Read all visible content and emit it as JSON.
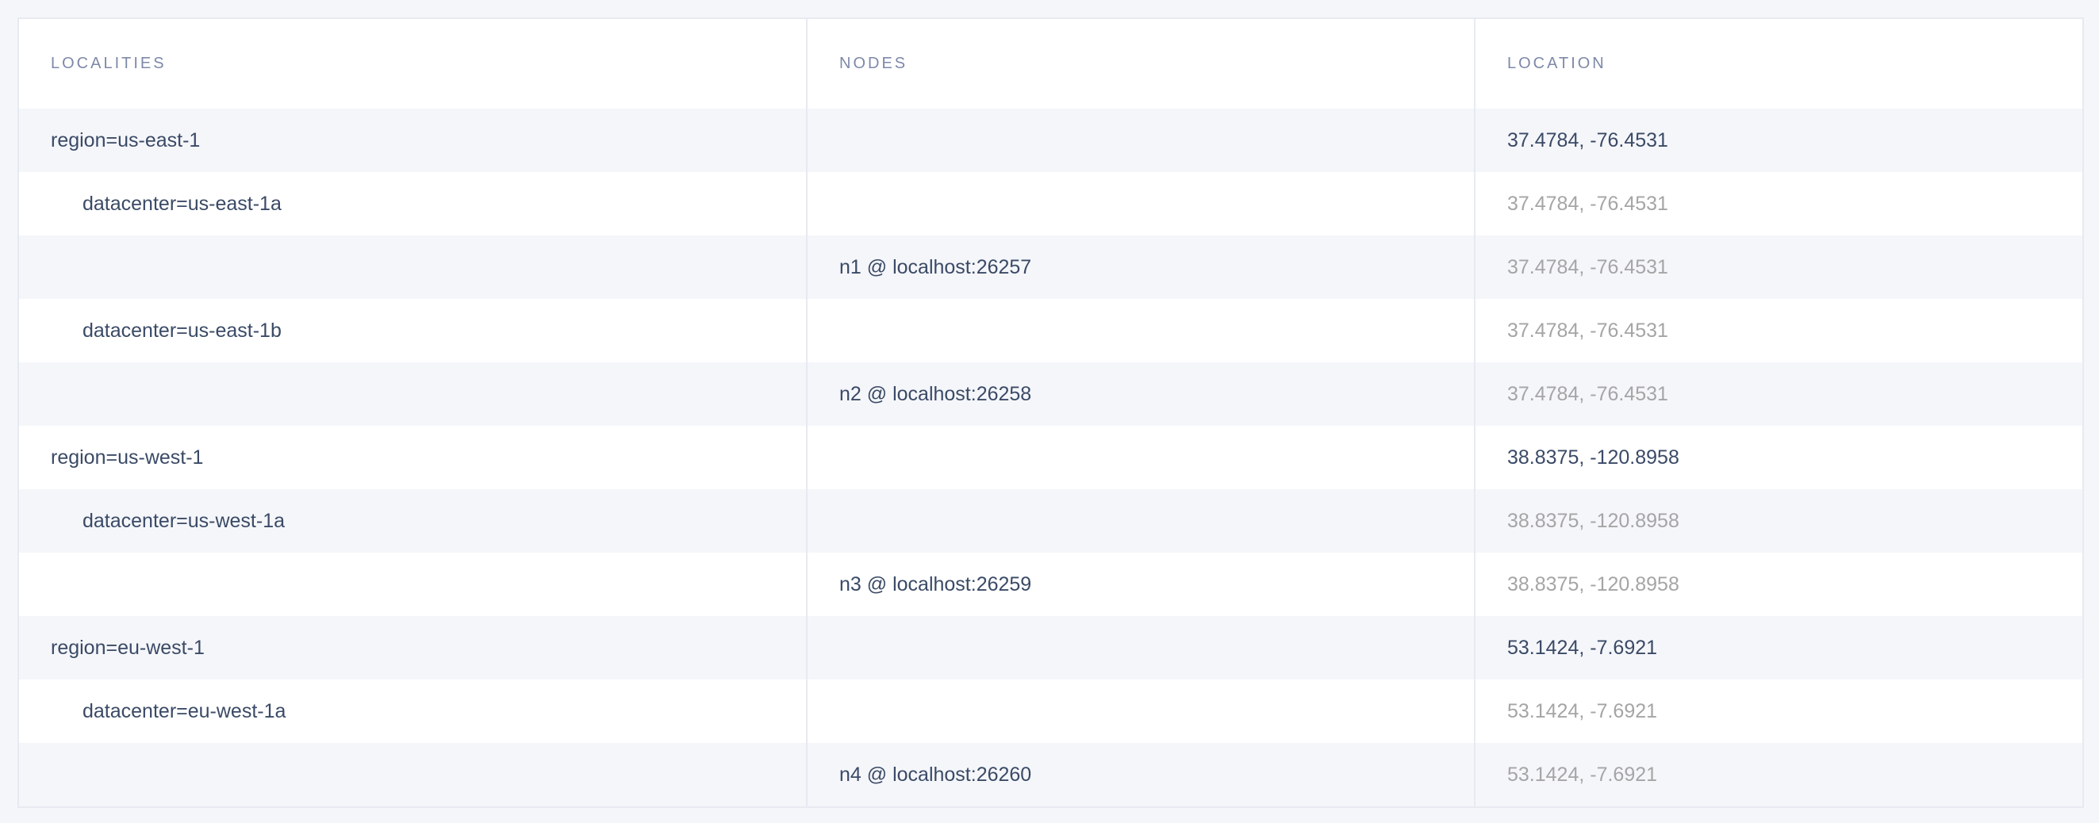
{
  "table": {
    "headers": [
      "LOCALITIES",
      "NODES",
      "LOCATION"
    ],
    "rows": [
      {
        "locality": "region=us-east-1",
        "node": "",
        "location": "37.4784, -76.4531",
        "level": 0
      },
      {
        "locality": "datacenter=us-east-1a",
        "node": "",
        "location": "37.4784, -76.4531",
        "level": 1
      },
      {
        "locality": "",
        "node": "n1 @ localhost:26257",
        "location": "37.4784, -76.4531",
        "level": 2
      },
      {
        "locality": "datacenter=us-east-1b",
        "node": "",
        "location": "37.4784, -76.4531",
        "level": 1
      },
      {
        "locality": "",
        "node": "n2 @ localhost:26258",
        "location": "37.4784, -76.4531",
        "level": 2
      },
      {
        "locality": "region=us-west-1",
        "node": "",
        "location": "38.8375, -120.8958",
        "level": 0
      },
      {
        "locality": "datacenter=us-west-1a",
        "node": "",
        "location": "38.8375, -120.8958",
        "level": 1
      },
      {
        "locality": "",
        "node": "n3 @ localhost:26259",
        "location": "38.8375, -120.8958",
        "level": 2
      },
      {
        "locality": "region=eu-west-1",
        "node": "",
        "location": "53.1424, -7.6921",
        "level": 0
      },
      {
        "locality": "datacenter=eu-west-1a",
        "node": "",
        "location": "53.1424, -7.6921",
        "level": 1
      },
      {
        "locality": "",
        "node": "n4 @ localhost:26260",
        "location": "53.1424, -7.6921",
        "level": 2
      }
    ]
  },
  "colors": {
    "text": "#3a4a66",
    "header": "#7e89a9",
    "muted": "#a5a5a5",
    "stripe": "#f5f6fa"
  }
}
